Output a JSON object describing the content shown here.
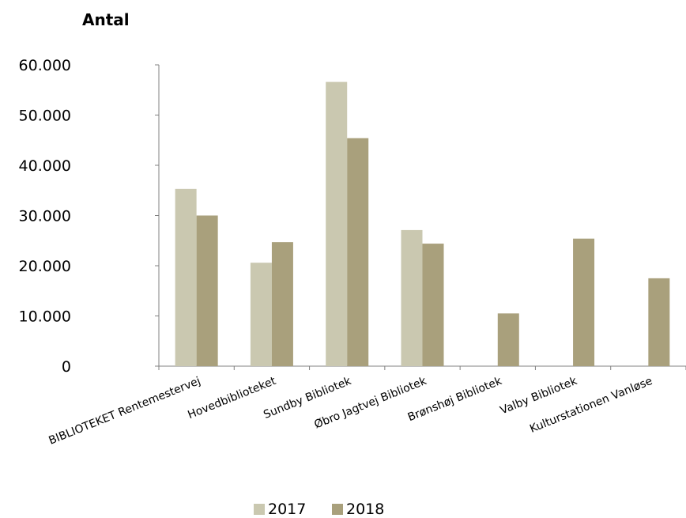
{
  "chart_data": {
    "type": "bar",
    "ylabel": "Antal",
    "categories": [
      "BIBLIOTEKET Rentemestervej",
      "Hovedbiblioteket",
      "Sundby Bibliotek",
      "Øbro Jagtvej Bibliotek",
      "Brønshøj Bibliotek",
      "Valby Bibliotek",
      "Kulturstationen Vanløse"
    ],
    "series": [
      {
        "name": "2017",
        "color": "#cac8b0",
        "values": [
          35300,
          20600,
          56600,
          27100,
          null,
          null,
          null
        ]
      },
      {
        "name": "2018",
        "color": "#a9a07c",
        "values": [
          30000,
          24700,
          45400,
          24400,
          10500,
          25400,
          17500
        ]
      }
    ],
    "ylim": [
      0,
      60000
    ],
    "yticks": [
      0,
      10000,
      20000,
      30000,
      40000,
      50000,
      60000
    ],
    "ytick_labels": [
      "0",
      "10.000",
      "20.000",
      "30.000",
      "40.000",
      "50.000",
      "60.000"
    ],
    "grid": false,
    "legend_position": "bottom"
  }
}
